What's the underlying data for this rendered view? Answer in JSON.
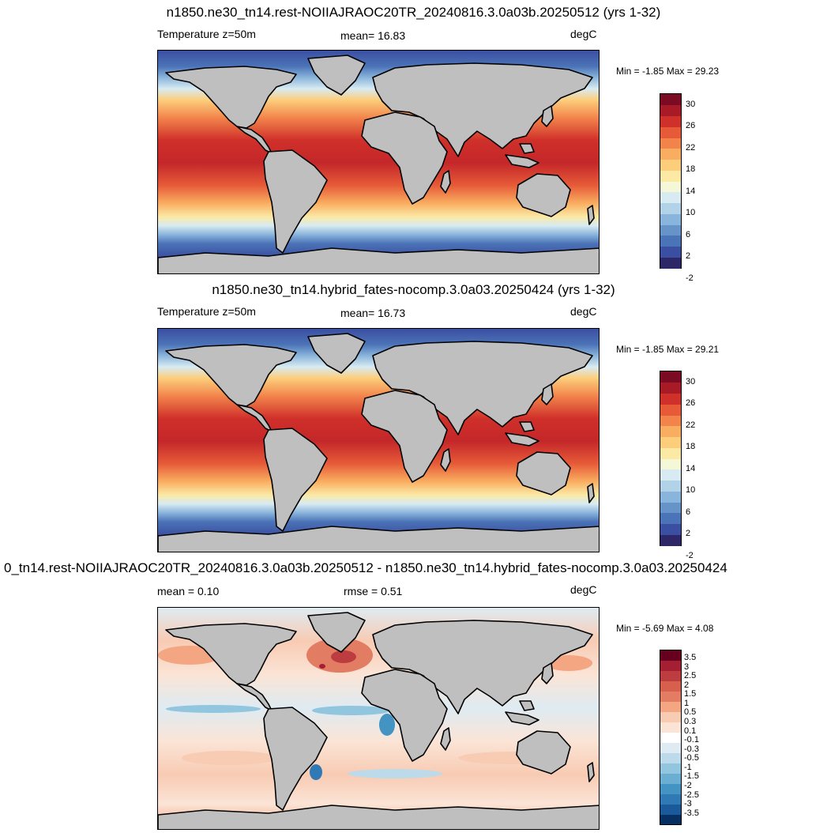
{
  "panels": [
    {
      "title": "n1850.ne30_tn14.rest-NOIIAJRAOC20TR_20240816.3.0a03b.20250512 (yrs 1-32)",
      "left_label": "Temperature z=50m",
      "center_label": "mean=  16.83",
      "units": "degC",
      "minmax": "Min =  -1.85 Max =  29.23",
      "colorbar": {
        "colors": [
          "#2d2767",
          "#3b4fa2",
          "#4b73b7",
          "#6694c8",
          "#89b4db",
          "#b2d2e8",
          "#d8ebf2",
          "#f4f8d6",
          "#fbe9a4",
          "#fcce7c",
          "#f9ad60",
          "#f2844b",
          "#e65a38",
          "#d0302a",
          "#a81a26",
          "#7a0b22"
        ],
        "labels": [
          "30",
          "26",
          "22",
          "18",
          "14",
          "10",
          "6",
          "2",
          "-2"
        ]
      }
    },
    {
      "title": "n1850.ne30_tn14.hybrid_fates-nocomp.3.0a03.20250424 (yrs 1-32)",
      "left_label": "Temperature z=50m",
      "center_label": "mean=  16.73",
      "units": "degC",
      "minmax": "Min =  -1.85 Max =  29.21",
      "colorbar": {
        "colors": [
          "#2d2767",
          "#3b4fa2",
          "#4b73b7",
          "#6694c8",
          "#89b4db",
          "#b2d2e8",
          "#d8ebf2",
          "#f4f8d6",
          "#fbe9a4",
          "#fcce7c",
          "#f9ad60",
          "#f2844b",
          "#e65a38",
          "#d0302a",
          "#a81a26",
          "#7a0b22"
        ],
        "labels": [
          "30",
          "26",
          "22",
          "18",
          "14",
          "10",
          "6",
          "2",
          "-2"
        ]
      }
    },
    {
      "title": "0_tn14.rest-NOIIAJRAOC20TR_20240816.3.0a03b.20250512 - n1850.ne30_tn14.hybrid_fates-nocomp.3.0a03.20250424",
      "left_label": "mean =   0.10",
      "center_label": "rmse =   0.51",
      "units": "degC",
      "minmax": "Min =  -5.69 Max =   4.08",
      "colorbar": {
        "colors": [
          "#053061",
          "#1a5a9a",
          "#2f79b5",
          "#4393c3",
          "#6aaed1",
          "#92c5de",
          "#bcdaea",
          "#deebf2",
          "#ffffff",
          "#fbe4d6",
          "#f8cbb3",
          "#f4a582",
          "#e27c63",
          "#d6604d",
          "#bd3c3f",
          "#a51f32",
          "#67001f"
        ],
        "labels": [
          "3.5",
          "3",
          "2.5",
          "2",
          "1.5",
          "1",
          "0.5",
          "0.3",
          "0.1",
          "-0.1",
          "-0.3",
          "-0.5",
          "-1",
          "-1.5",
          "-2",
          "-2.5",
          "-3",
          "-3.5"
        ]
      }
    }
  ],
  "colors": {
    "land": "#bfbfbf",
    "outline": "#000000"
  }
}
